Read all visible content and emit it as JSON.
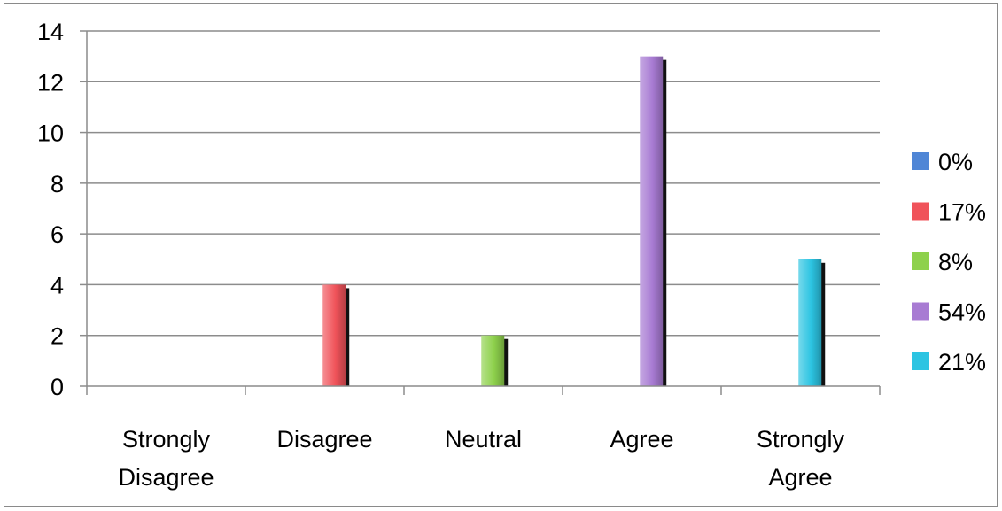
{
  "chart_data": {
    "type": "bar",
    "categories": [
      [
        "Strongly",
        "Disagree"
      ],
      [
        "Disagree"
      ],
      [
        "Neutral"
      ],
      [
        "Agree"
      ],
      [
        "Strongly",
        "Agree"
      ]
    ],
    "values": [
      0,
      4,
      2,
      13,
      5
    ],
    "colors": [
      "#4f86d6",
      "#f0535a",
      "#8ed14c",
      "#a87bd3",
      "#2cc4e2"
    ],
    "legend": [
      {
        "label": "0%",
        "color": "#4f86d6"
      },
      {
        "label": "17%",
        "color": "#f0535a"
      },
      {
        "label": "8%",
        "color": "#8ed14c"
      },
      {
        "label": "54%",
        "color": "#a87bd3"
      },
      {
        "label": "21%",
        "color": "#2cc4e2"
      }
    ],
    "title": "",
    "xlabel": "",
    "ylabel": "",
    "ylim": [
      0,
      14
    ],
    "yticks": [
      0,
      2,
      4,
      6,
      8,
      10,
      12,
      14
    ],
    "grid": true,
    "legend_position": "right"
  }
}
